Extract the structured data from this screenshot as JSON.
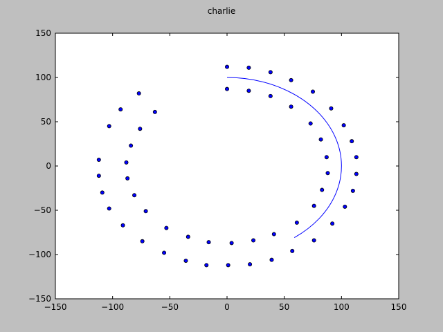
{
  "chart_data": {
    "type": "scatter",
    "title": "charlie",
    "xlabel": "",
    "ylabel": "",
    "xlim": [
      -150,
      150
    ],
    "ylim": [
      -150,
      150
    ],
    "xticks": [
      -150,
      -100,
      -50,
      0,
      50,
      100,
      150
    ],
    "yticks": [
      -150,
      -100,
      -50,
      0,
      50,
      100,
      150
    ],
    "xtick_labels": [
      "−150",
      "−100",
      "−50",
      "0",
      "50",
      "100",
      "150"
    ],
    "ytick_labels": [
      "−150",
      "−100",
      "−50",
      "0",
      "50",
      "100",
      "150"
    ],
    "grid": false,
    "line_color": "#0000ff",
    "marker_color": "#0000ff",
    "marker_edge": "#000000",
    "line": {
      "center": [
        0,
        0
      ],
      "radius": 100,
      "start_angle_deg": 90,
      "end_angle_deg": 306,
      "direction": "clockwise"
    },
    "points": [
      [
        0,
        112
      ],
      [
        19,
        111
      ],
      [
        38,
        106
      ],
      [
        56,
        97
      ],
      [
        75,
        84
      ],
      [
        91,
        65
      ],
      [
        102,
        46
      ],
      [
        109,
        28
      ],
      [
        113,
        10
      ],
      [
        113,
        -9
      ],
      [
        110,
        -28
      ],
      [
        103,
        -46
      ],
      [
        92,
        -65
      ],
      [
        76,
        -84
      ],
      [
        57,
        -96
      ],
      [
        39,
        -106
      ],
      [
        20,
        -111
      ],
      [
        1,
        -112
      ],
      [
        -18,
        -112
      ],
      [
        -36,
        -107
      ],
      [
        -55,
        -98
      ],
      [
        -74,
        -85
      ],
      [
        -91,
        -67
      ],
      [
        -103,
        -48
      ],
      [
        -109,
        -30
      ],
      [
        -112,
        -11
      ],
      [
        -112,
        7
      ],
      [
        -103,
        45
      ],
      [
        -93,
        64
      ],
      [
        -77,
        82
      ],
      [
        0,
        87
      ],
      [
        19,
        85
      ],
      [
        38,
        79
      ],
      [
        56,
        67
      ],
      [
        73,
        48
      ],
      [
        82,
        30
      ],
      [
        87,
        10
      ],
      [
        88,
        -8
      ],
      [
        83,
        -27
      ],
      [
        76,
        -45
      ],
      [
        61,
        -64
      ],
      [
        41,
        -77
      ],
      [
        23,
        -84
      ],
      [
        4,
        -87
      ],
      [
        -16,
        -86
      ],
      [
        -34,
        -80
      ],
      [
        -53,
        -70
      ],
      [
        -71,
        -51
      ],
      [
        -81,
        -33
      ],
      [
        -87,
        -14
      ],
      [
        -88,
        4
      ],
      [
        -84,
        23
      ],
      [
        -76,
        42
      ],
      [
        -63,
        61
      ]
    ]
  }
}
